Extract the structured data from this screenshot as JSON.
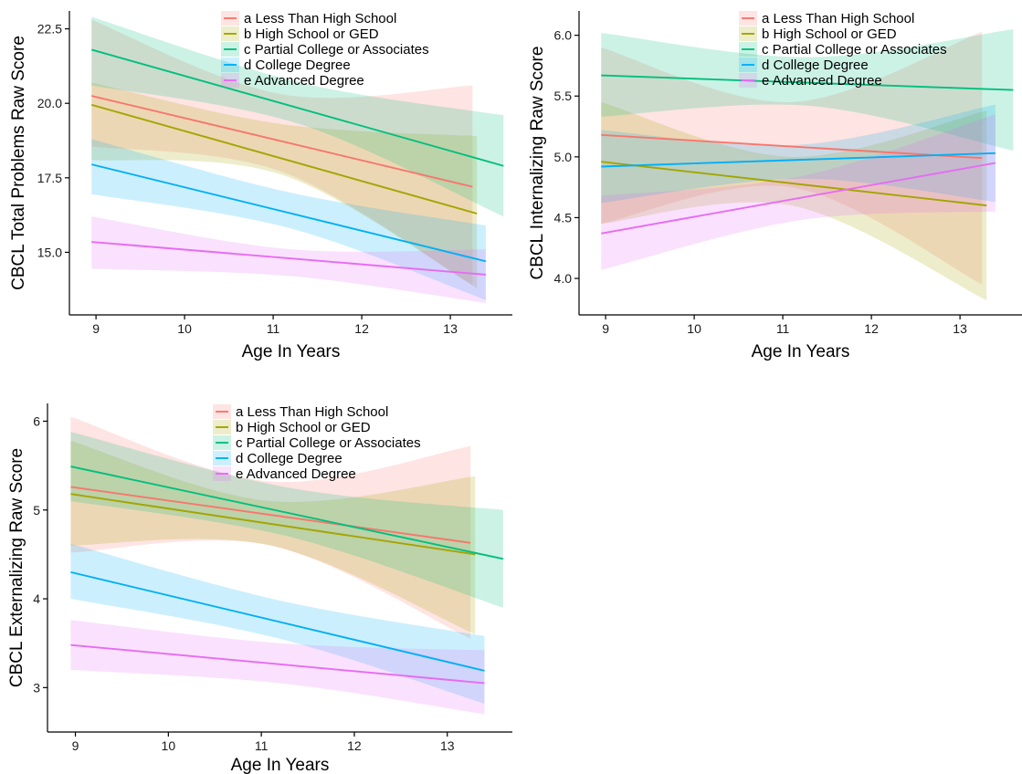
{
  "chart_data": [
    {
      "type": "line",
      "title": "",
      "xlabel": "Age In Years",
      "ylabel": "CBCL Total Problems Raw Score",
      "xlim": [
        8.7,
        13.7
      ],
      "ylim": [
        12.9,
        23.1
      ],
      "xticks": [
        9,
        10,
        11,
        12,
        13
      ],
      "yticks": [
        15.0,
        17.5,
        20.0,
        22.5
      ],
      "ytick_labels": [
        "15.0",
        "17.5",
        "20.0",
        "22.5"
      ],
      "grid": false,
      "legend_position": "top-center",
      "series": [
        {
          "name": "a  Less Than High School",
          "color": "#f8766d",
          "x": [
            8.95,
            13.25
          ],
          "y": [
            20.25,
            17.2
          ],
          "ci_x": [
            8.95,
            11.1,
            13.25
          ],
          "ci_low": [
            18.55,
            17.7,
            13.9
          ],
          "ci_high": [
            22.8,
            20.3,
            20.6
          ]
        },
        {
          "name": "b  High School or GED",
          "color": "#a3a500",
          "x": [
            8.95,
            13.3
          ],
          "y": [
            19.95,
            16.3
          ],
          "ci_x": [
            8.95,
            11.1,
            13.3
          ],
          "ci_low": [
            18.1,
            17.6,
            13.8
          ],
          "ci_high": [
            20.7,
            19.3,
            18.9
          ]
        },
        {
          "name": "c  Partial College or Associates",
          "color": "#00bf7d",
          "x": [
            8.95,
            13.6
          ],
          "y": [
            21.8,
            17.9
          ],
          "ci_x": [
            8.95,
            11.3,
            13.6
          ],
          "ci_low": [
            20.6,
            19.3,
            16.2
          ],
          "ci_high": [
            22.9,
            20.7,
            19.6
          ]
        },
        {
          "name": "d  College Degree",
          "color": "#00b0f6",
          "x": [
            8.95,
            13.4
          ],
          "y": [
            17.95,
            14.7
          ],
          "ci_x": [
            8.95,
            11.2,
            13.4
          ],
          "ci_low": [
            16.95,
            15.8,
            13.4
          ],
          "ci_high": [
            18.8,
            17.0,
            15.9
          ]
        },
        {
          "name": "e  Advanced Degree",
          "color": "#e76bf3",
          "x": [
            8.95,
            13.4
          ],
          "y": [
            15.35,
            14.25
          ],
          "ci_x": [
            8.95,
            11.2,
            13.4
          ],
          "ci_low": [
            14.45,
            14.2,
            13.3
          ],
          "ci_high": [
            16.2,
            15.1,
            15.1
          ]
        }
      ]
    },
    {
      "type": "line",
      "title": "",
      "xlabel": "Age In Years",
      "ylabel": "CBCL Internalizing Raw Score",
      "xlim": [
        8.7,
        13.7
      ],
      "ylim": [
        3.7,
        6.2
      ],
      "xticks": [
        9,
        10,
        11,
        12,
        13
      ],
      "yticks": [
        4.0,
        4.5,
        5.0,
        5.5,
        6.0
      ],
      "ytick_labels": [
        "4.0",
        "4.5",
        "5.0",
        "5.5",
        "6.0"
      ],
      "grid": false,
      "legend_position": "top-center",
      "series": [
        {
          "name": "a  Less Than High School",
          "color": "#f8766d",
          "x": [
            8.95,
            13.25
          ],
          "y": [
            5.18,
            4.99
          ],
          "ci_x": [
            8.95,
            11.1,
            13.25
          ],
          "ci_low": [
            4.45,
            4.75,
            3.95
          ],
          "ci_high": [
            5.9,
            5.45,
            6.03
          ]
        },
        {
          "name": "b  High School or GED",
          "color": "#a3a500",
          "x": [
            8.95,
            13.3
          ],
          "y": [
            4.96,
            4.6
          ],
          "ci_x": [
            8.95,
            11.1,
            13.3
          ],
          "ci_low": [
            4.45,
            4.6,
            3.82
          ],
          "ci_high": [
            5.45,
            5.0,
            5.38
          ]
        },
        {
          "name": "c  Partial College or Associates",
          "color": "#00bf7d",
          "x": [
            8.95,
            13.6
          ],
          "y": [
            5.67,
            5.55
          ],
          "ci_x": [
            8.95,
            11.3,
            13.6
          ],
          "ci_low": [
            5.33,
            5.42,
            5.05
          ],
          "ci_high": [
            6.02,
            5.82,
            6.05
          ]
        },
        {
          "name": "d  College Degree",
          "color": "#00b0f6",
          "x": [
            8.95,
            13.4
          ],
          "y": [
            4.92,
            5.03
          ],
          "ci_x": [
            8.95,
            11.2,
            13.4
          ],
          "ci_low": [
            4.62,
            4.82,
            4.63
          ],
          "ci_high": [
            5.22,
            5.1,
            5.43
          ]
        },
        {
          "name": "e  Advanced Degree",
          "color": "#e76bf3",
          "x": [
            8.95,
            13.4
          ],
          "y": [
            4.37,
            4.95
          ],
          "ci_x": [
            8.95,
            11.2,
            13.4
          ],
          "ci_low": [
            4.07,
            4.48,
            4.55
          ],
          "ci_high": [
            4.68,
            4.84,
            5.35
          ]
        }
      ]
    },
    {
      "type": "line",
      "title": "",
      "xlabel": "Age In Years",
      "ylabel": "CBCL Externalizing Raw Score",
      "xlim": [
        8.7,
        13.7
      ],
      "ylim": [
        2.5,
        6.2
      ],
      "xticks": [
        9,
        10,
        11,
        12,
        13
      ],
      "yticks": [
        3,
        4,
        5,
        6
      ],
      "ytick_labels": [
        "3",
        "4",
        "5",
        "6"
      ],
      "grid": false,
      "legend_position": "top-center",
      "series": [
        {
          "name": "a  Less Than High School",
          "color": "#f8766d",
          "x": [
            8.95,
            13.25
          ],
          "y": [
            5.26,
            4.63
          ],
          "ci_x": [
            8.95,
            11.1,
            13.25
          ],
          "ci_low": [
            4.52,
            4.6,
            3.55
          ],
          "ci_high": [
            6.05,
            5.32,
            5.72
          ]
        },
        {
          "name": "b  High School or GED",
          "color": "#a3a500",
          "x": [
            8.95,
            13.3
          ],
          "y": [
            5.18,
            4.5
          ],
          "ci_x": [
            8.95,
            11.1,
            13.3
          ],
          "ci_low": [
            4.6,
            4.6,
            3.6
          ],
          "ci_high": [
            5.78,
            5.1,
            5.38
          ]
        },
        {
          "name": "c  Partial College or Associates",
          "color": "#00bf7d",
          "x": [
            8.95,
            13.6
          ],
          "y": [
            5.49,
            4.45
          ],
          "ci_x": [
            8.95,
            11.3,
            13.6
          ],
          "ci_low": [
            5.1,
            4.7,
            3.9
          ],
          "ci_high": [
            5.88,
            5.25,
            5.0
          ]
        },
        {
          "name": "d  College Degree",
          "color": "#00b0f6",
          "x": [
            8.95,
            13.4
          ],
          "y": [
            4.3,
            3.19
          ],
          "ci_x": [
            8.95,
            11.2,
            13.4
          ],
          "ci_low": [
            4.0,
            3.55,
            2.82
          ],
          "ci_high": [
            4.62,
            3.98,
            3.58
          ]
        },
        {
          "name": "e  Advanced Degree",
          "color": "#e76bf3",
          "x": [
            8.95,
            13.4
          ],
          "y": [
            3.48,
            3.05
          ],
          "ci_x": [
            8.95,
            11.2,
            13.4
          ],
          "ci_low": [
            3.2,
            3.05,
            2.7
          ],
          "ci_high": [
            3.76,
            3.5,
            3.42
          ]
        }
      ]
    }
  ]
}
